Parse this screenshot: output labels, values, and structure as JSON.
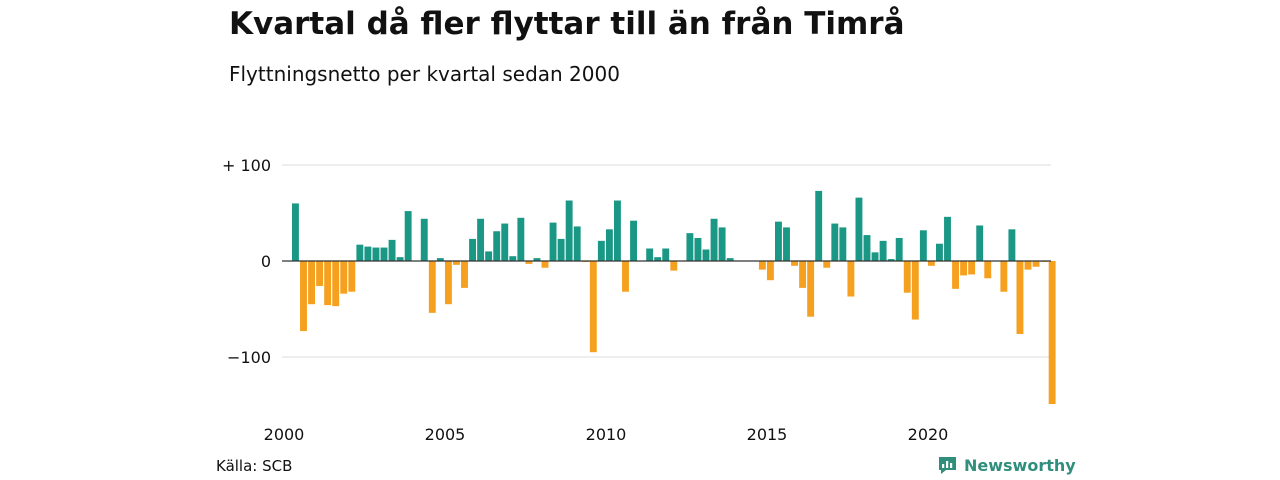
{
  "title": "Kvartal då fler flyttar till än från Timrå",
  "subtitle": "Flyttningsnetto per kvartal sedan 2000",
  "source": "Källa: SCB",
  "brand": "Newsworthy",
  "colors": {
    "positive": "#1b9785",
    "negative": "#f5a01f",
    "grid": "#dddddd",
    "zero": "#333333",
    "brand": "#2f8f7c"
  },
  "chart_data": {
    "type": "bar",
    "x_start_year": 2000,
    "ylim": [
      -150,
      100
    ],
    "yticks": [
      {
        "value": 100,
        "label": "+ 100"
      },
      {
        "value": 0,
        "label": "0"
      },
      {
        "value": -100,
        "label": "−100"
      }
    ],
    "xticks": [
      {
        "year": 2000,
        "label": "2000"
      },
      {
        "year": 2005,
        "label": "2005"
      },
      {
        "year": 2010,
        "label": "2010"
      },
      {
        "year": 2015,
        "label": "2015"
      },
      {
        "year": 2020,
        "label": "2020"
      }
    ],
    "values": [
      60,
      -73,
      -45,
      -26,
      -46,
      -47,
      -34,
      -32,
      17,
      15,
      14,
      14,
      22,
      4,
      52,
      0,
      44,
      -54,
      3,
      -45,
      -4,
      -28,
      23,
      44,
      10,
      31,
      39,
      5,
      45,
      -3,
      3,
      -7,
      40,
      23,
      63,
      36,
      -1,
      -95,
      21,
      33,
      63,
      -32,
      42,
      0,
      13,
      4,
      13,
      -10,
      0,
      29,
      24,
      12,
      44,
      35,
      3,
      0,
      0,
      0,
      -9,
      -20,
      41,
      35,
      -5,
      -28,
      -58,
      73,
      -7,
      39,
      35,
      -37,
      66,
      27,
      9,
      21,
      2,
      24,
      -33,
      -61,
      32,
      -5,
      18,
      46,
      -29,
      -15,
      -14,
      37,
      -18,
      0,
      -32,
      33,
      -76,
      -9,
      -6,
      -1,
      -149
    ]
  }
}
